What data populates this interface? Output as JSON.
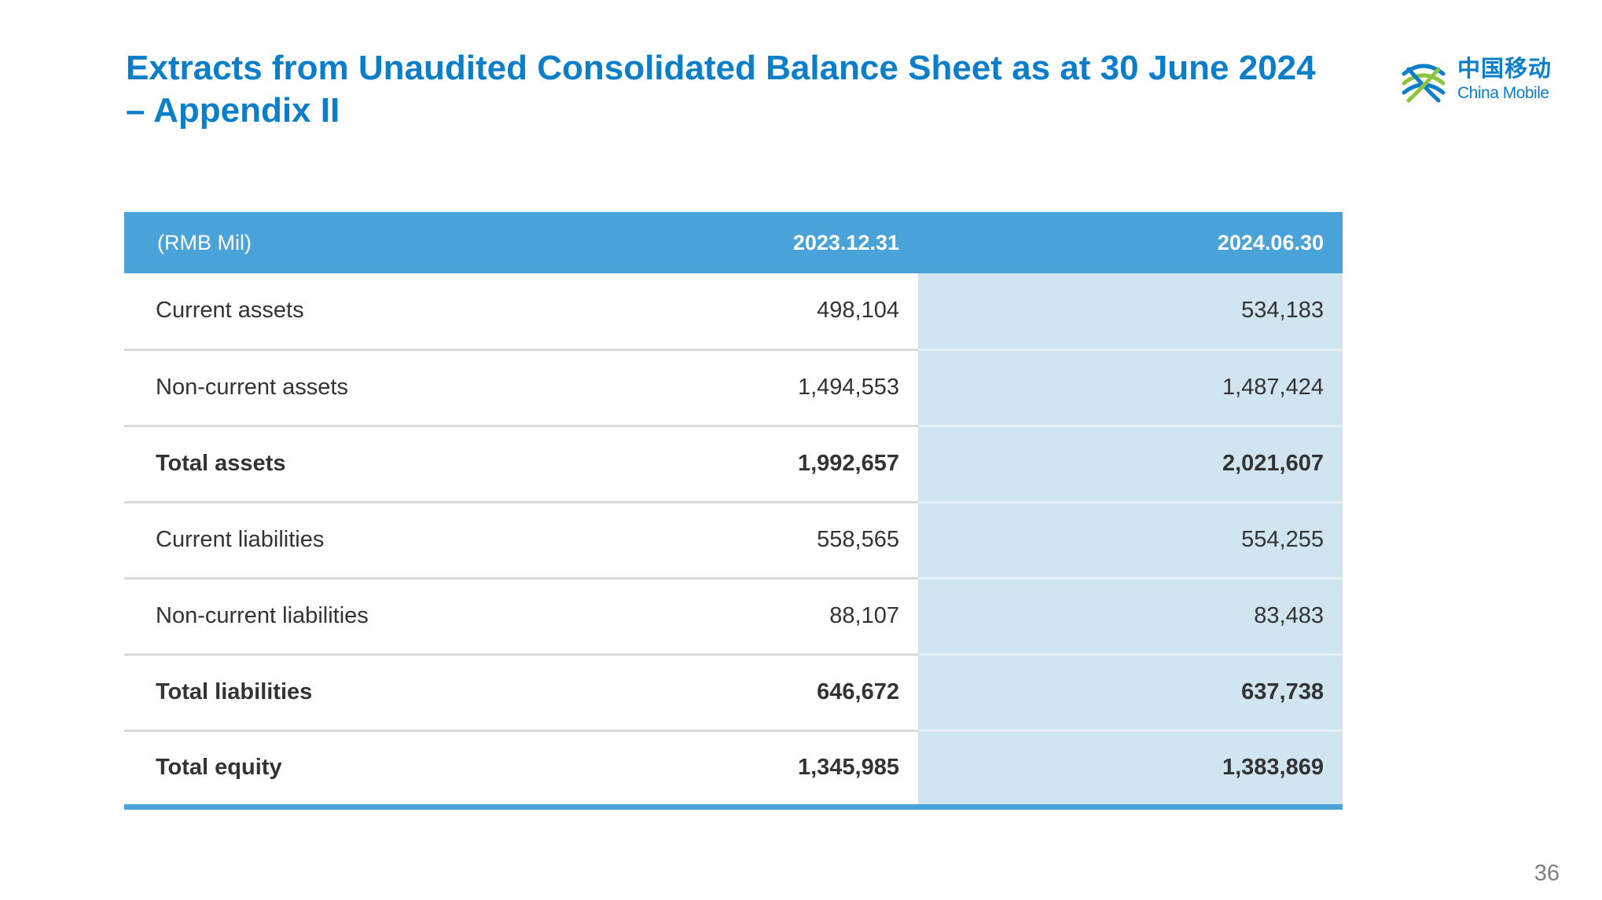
{
  "title": {
    "line1": "Extracts from Unaudited Consolidated Balance Sheet as at 30 June 2024",
    "line2": "– Appendix II"
  },
  "logo": {
    "name_cn": "中国移动",
    "name_en": "China Mobile",
    "icon": "china-mobile-logo-icon",
    "colors": [
      "#0a7ec9",
      "#8cc63f"
    ]
  },
  "table": {
    "unit_label": "(RMB Mil)",
    "columns": [
      "2023.12.31",
      "2024.06.30"
    ],
    "rows": [
      {
        "label": "Current assets",
        "values": [
          "498,104",
          "534,183"
        ],
        "bold": false
      },
      {
        "label": "Non-current assets",
        "values": [
          "1,494,553",
          "1,487,424"
        ],
        "bold": false
      },
      {
        "label": "Total assets",
        "values": [
          "1,992,657",
          "2,021,607"
        ],
        "bold": true
      },
      {
        "label": "Current liabilities",
        "values": [
          "558,565",
          "554,255"
        ],
        "bold": false
      },
      {
        "label": "Non-current liabilities",
        "values": [
          "88,107",
          "83,483"
        ],
        "bold": false
      },
      {
        "label": "Total liabilities",
        "values": [
          "646,672",
          "637,738"
        ],
        "bold": true
      },
      {
        "label": "Total equity",
        "values": [
          "1,345,985",
          "1,383,869"
        ],
        "bold": true
      }
    ]
  },
  "page_number": "36",
  "colors": {
    "title": "#0a7ec9",
    "header_bg": "#4aa3d8",
    "highlight_column_bg": "#d1e5f1",
    "text": "#333333"
  }
}
